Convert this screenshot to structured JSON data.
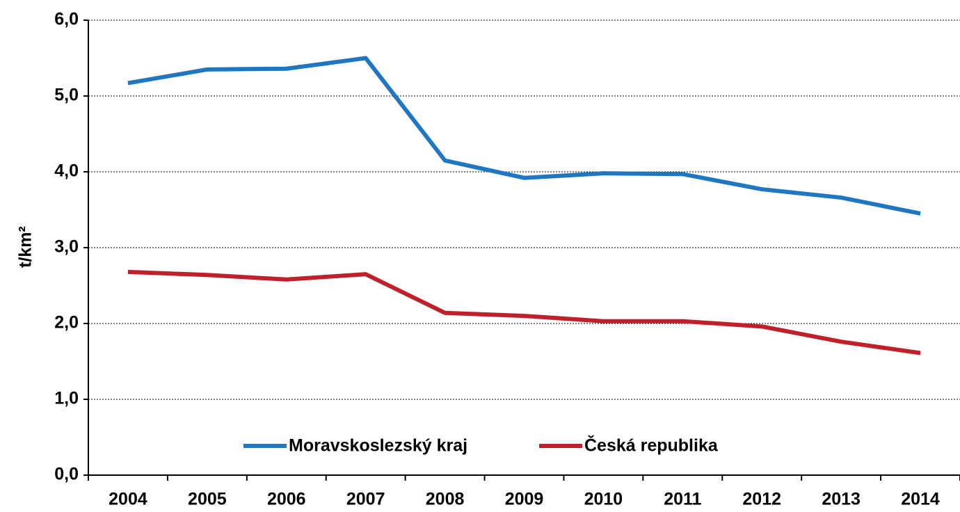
{
  "chart_data": {
    "type": "line",
    "ylabel": "t/km²",
    "categories": [
      "2004",
      "2005",
      "2006",
      "2007",
      "2008",
      "2009",
      "2010",
      "2011",
      "2012",
      "2013",
      "2014"
    ],
    "series": [
      {
        "name": "Moravskoslezský kraj",
        "color": "#1f77c1",
        "values": [
          5.17,
          5.35,
          5.36,
          5.5,
          4.15,
          3.92,
          3.98,
          3.97,
          3.77,
          3.66,
          3.45
        ]
      },
      {
        "name": "Česká republika",
        "color": "#c0202a",
        "values": [
          2.68,
          2.64,
          2.58,
          2.65,
          2.14,
          2.1,
          2.03,
          2.03,
          1.96,
          1.76,
          1.61
        ]
      }
    ],
    "ylim": [
      0,
      6
    ],
    "yticks": [
      {
        "value": 0,
        "label": "0,0"
      },
      {
        "value": 1,
        "label": "1,0"
      },
      {
        "value": 2,
        "label": "2,0"
      },
      {
        "value": 3,
        "label": "3,0"
      },
      {
        "value": 4,
        "label": "4,0"
      },
      {
        "value": 5,
        "label": "5,0"
      },
      {
        "value": 6,
        "label": "6,0"
      }
    ],
    "grid": true,
    "legend": "bottom"
  }
}
